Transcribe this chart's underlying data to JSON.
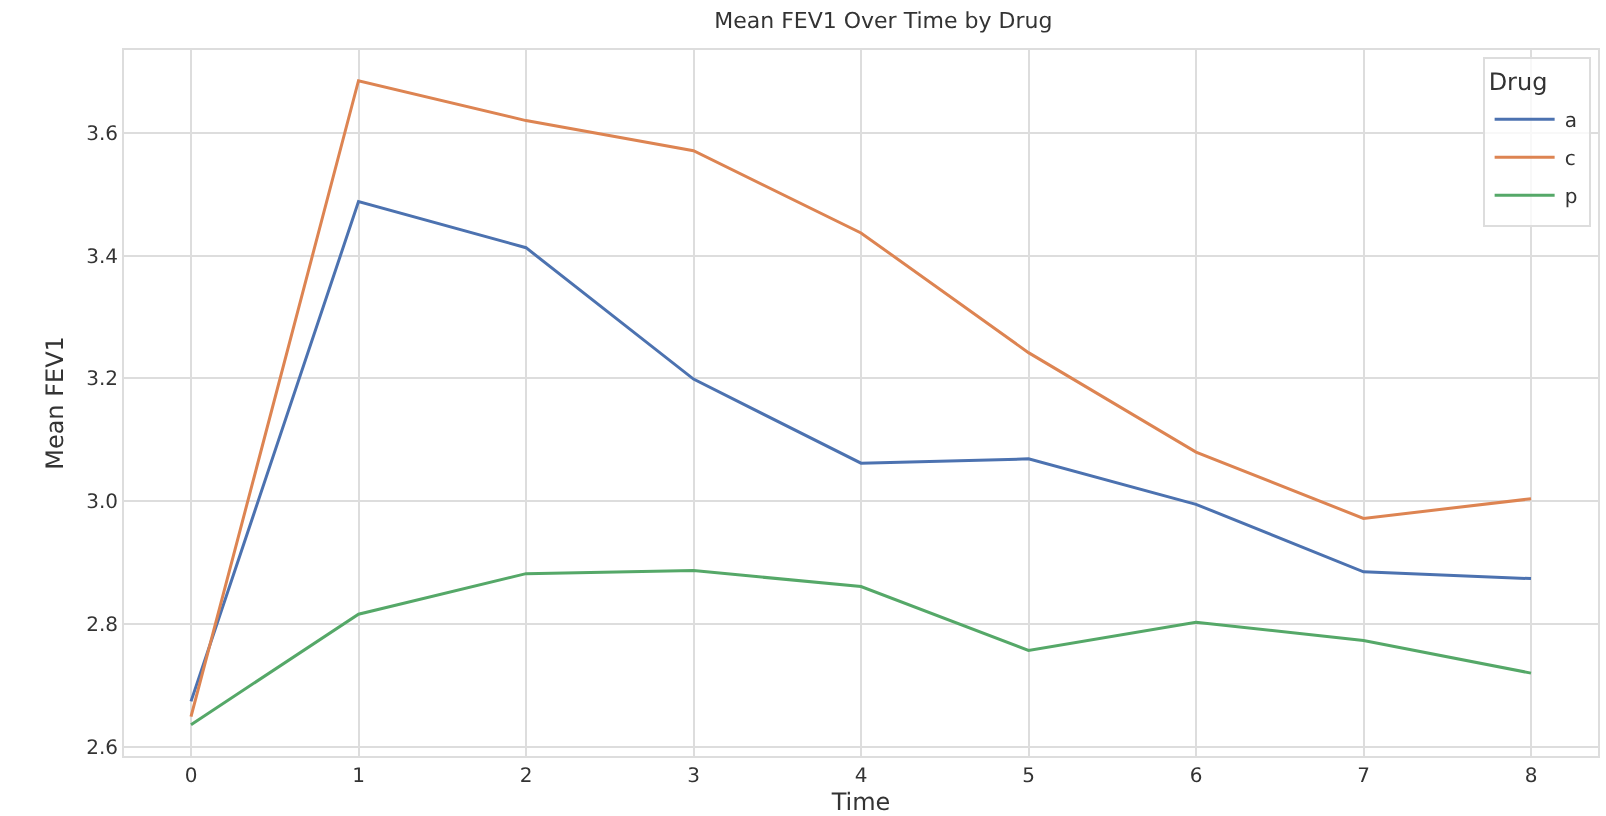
{
  "chart_data": {
    "type": "line",
    "title": "Mean FEV1 Over Time by Drug",
    "xlabel": "Time",
    "ylabel": "Mean FEV1",
    "legend_title": "Drug",
    "x": [
      0,
      1,
      2,
      3,
      4,
      5,
      6,
      7,
      8
    ],
    "series": [
      {
        "name": "a",
        "color": "#4c72b0",
        "values": [
          2.674,
          3.488,
          3.413,
          3.199,
          3.062,
          3.069,
          2.995,
          2.885,
          2.874
        ]
      },
      {
        "name": "c",
        "color": "#dd8452",
        "values": [
          2.649,
          3.685,
          3.62,
          3.571,
          3.437,
          3.242,
          3.08,
          2.972,
          3.004
        ]
      },
      {
        "name": "p",
        "color": "#55a868",
        "values": [
          2.636,
          2.816,
          2.882,
          2.887,
          2.861,
          2.757,
          2.803,
          2.773,
          2.72
        ]
      }
    ],
    "xlim": [
      -0.4,
      8.4
    ],
    "xticks": [
      0,
      1,
      2,
      3,
      4,
      5,
      6,
      7,
      8
    ],
    "ylim": [
      2.585,
      3.735
    ],
    "yticks": [
      {
        "value": 2.6,
        "label": "2.6"
      },
      {
        "value": 2.8,
        "label": "2.8"
      },
      {
        "value": 3.0,
        "label": "3.0"
      },
      {
        "value": 3.2,
        "label": "3.2"
      },
      {
        "value": 3.4,
        "label": "3.4"
      },
      {
        "value": 3.6,
        "label": "3.6"
      }
    ],
    "grid": true,
    "legend": "top right",
    "marker": "none",
    "line_style": "solid"
  }
}
